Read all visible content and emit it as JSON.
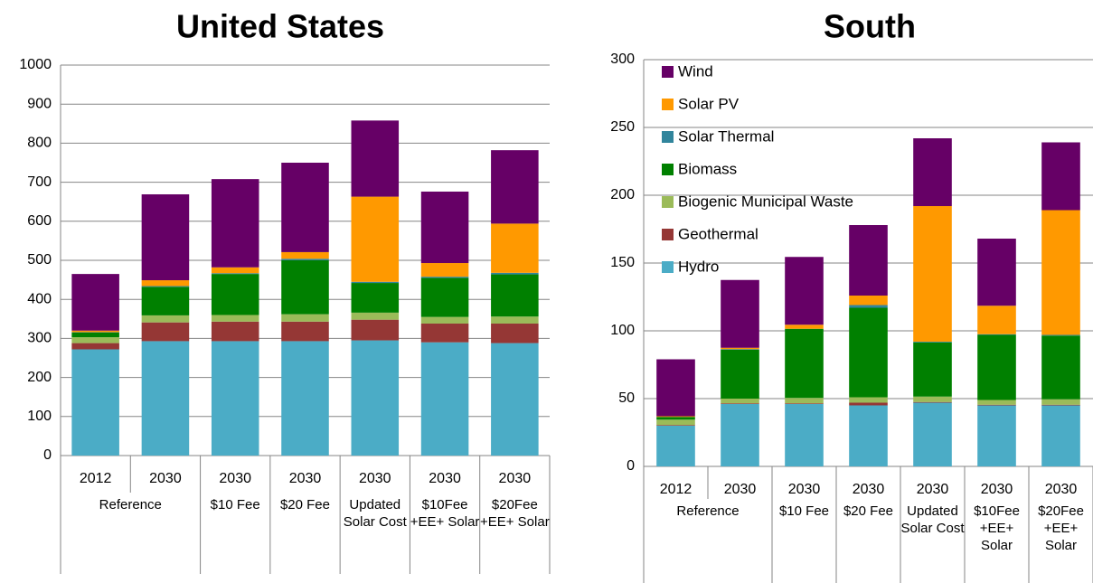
{
  "chart_data": [
    {
      "type": "bar",
      "stacked": true,
      "title": "United States",
      "categories": [
        "2012",
        "2030",
        "2030",
        "2030",
        "2030",
        "2030",
        "2030"
      ],
      "groups": [
        "Reference",
        null,
        "$10 Fee",
        "$20 Fee",
        "Updated Solar Cost",
        "$10Fee +EE+ Solar",
        "$20Fee +EE+ Solar"
      ],
      "series": [
        {
          "color": "#4bacc6",
          "values": [
            272,
            293,
            293,
            293,
            295,
            290,
            288
          ]
        },
        {
          "color": "#953735",
          "values": [
            16,
            48,
            50,
            50,
            53,
            48,
            50
          ]
        },
        {
          "color": "#9bbb59",
          "values": [
            15,
            18,
            17,
            19,
            18,
            17,
            18
          ]
        },
        {
          "color": "#008000",
          "values": [
            12,
            73,
            105,
            138,
            76,
            100,
            108
          ]
        },
        {
          "color": "#31859c",
          "values": [
            1,
            2,
            2,
            4,
            3,
            3,
            4
          ]
        },
        {
          "color": "#ff9900",
          "values": [
            4,
            15,
            15,
            17,
            218,
            35,
            126
          ]
        },
        {
          "color": "#660066",
          "values": [
            145,
            220,
            226,
            229,
            195,
            183,
            188
          ]
        }
      ],
      "ylim": [
        0,
        1000
      ],
      "yticks": [
        0,
        100,
        200,
        300,
        400,
        500,
        600,
        700,
        800,
        900,
        1000
      ],
      "grid": true
    },
    {
      "type": "bar",
      "stacked": true,
      "title": "South",
      "categories": [
        "2012",
        "2030",
        "2030",
        "2030",
        "2030",
        "2030",
        "2030"
      ],
      "groups": [
        "Reference",
        null,
        "$10 Fee",
        "$20 Fee",
        "Updated Solar Cost",
        "$10Fee +EE+ Solar",
        "$20Fee +EE+ Solar"
      ],
      "series": [
        {
          "name": "Hydro",
          "color": "#4bacc6",
          "values": [
            30,
            46,
            46,
            45,
            47,
            45,
            45
          ]
        },
        {
          "name": "Geothermal",
          "color": "#953735",
          "values": [
            0.5,
            0.5,
            0.5,
            2,
            0.5,
            0.5,
            0.5
          ]
        },
        {
          "name": "Biogenic Municipal Waste",
          "color": "#9bbb59",
          "values": [
            4,
            3.5,
            4,
            4,
            4,
            3.5,
            4
          ]
        },
        {
          "name": "Biomass",
          "color": "#008000",
          "values": [
            2,
            36,
            51,
            66,
            40,
            48,
            47
          ]
        },
        {
          "name": "Solar Thermal",
          "color": "#31859c",
          "values": [
            0,
            0.5,
            0,
            2,
            0.5,
            0.5,
            0.5
          ]
        },
        {
          "name": "Solar PV",
          "color": "#ff9900",
          "values": [
            0.5,
            1,
            3,
            7,
            100,
            21,
            92
          ]
        },
        {
          "name": "Wind",
          "color": "#660066",
          "values": [
            42,
            50,
            50,
            52,
            50,
            49.5,
            50
          ]
        }
      ],
      "ylim": [
        0,
        300
      ],
      "yticks": [
        0,
        50,
        100,
        150,
        200,
        250,
        300
      ],
      "grid": true,
      "legend": "upper left"
    }
  ]
}
